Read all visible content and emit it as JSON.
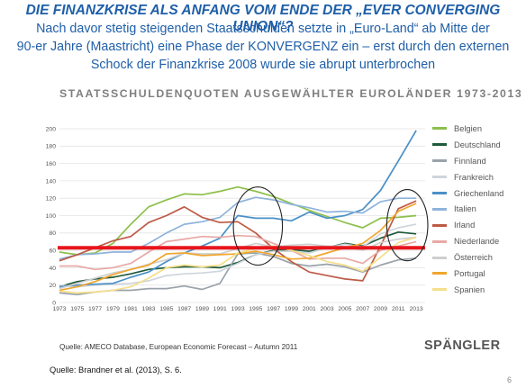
{
  "slide": {
    "title": "DIE FINANZKRISE ALS ANFANG VOM ENDE DER „EVER CONVERGING UNION“?",
    "subtitle_lines": [
      "Nach davor stetig steigenden Staatsschulden setzte in „Euro-Land“ ab Mitte der",
      "90-er Jahre (Maastricht) eine Phase der KONVERGENZ ein – erst durch den externen",
      "Schock der Finanzkrise 2008 wurde sie abrupt unterbrochen"
    ],
    "source_chart": "Quelle: AMECO Database, European Economic Forecast – Autumn 2011",
    "logo": "SPÄNGLER",
    "source_slide": "Quelle: Brandner et al. (2013), S. 6.",
    "page_number": "6"
  },
  "chart_data": {
    "type": "line",
    "title": "STAATSSCHULDENQUOTEN AUSGEWÄHLTER EUROLÄNDER 1973-2013",
    "xlabel": "",
    "ylabel": "",
    "xlim": [
      1973,
      2014
    ],
    "ylim": [
      0,
      200
    ],
    "yticks": [
      0,
      20,
      40,
      60,
      80,
      100,
      120,
      140,
      160,
      180,
      200
    ],
    "xticks": [
      1973,
      1975,
      1977,
      1979,
      1981,
      1983,
      1985,
      1987,
      1989,
      1991,
      1993,
      1995,
      1997,
      1999,
      2001,
      2003,
      2005,
      2007,
      2009,
      2011,
      2013
    ],
    "grid": true,
    "legend": "right",
    "reference_line": {
      "y": 63,
      "color": "#e8151c"
    },
    "annotations": [
      {
        "shape": "ellipse",
        "x_range": [
          1992.5,
          1998
        ],
        "y_range": [
          43,
          133
        ]
      },
      {
        "shape": "ellipse",
        "x_range": [
          2009.7,
          2014.3
        ],
        "y_range": [
          48,
          130
        ]
      }
    ],
    "x": [
      1973,
      1975,
      1977,
      1979,
      1981,
      1983,
      1985,
      1987,
      1989,
      1991,
      1993,
      1995,
      1997,
      1999,
      2001,
      2003,
      2005,
      2007,
      2009,
      2011,
      2013
    ],
    "series": [
      {
        "name": "Belgien",
        "color": "#8dc04b",
        "values": [
          58,
          55,
          57,
          68,
          90,
          110,
          118,
          125,
          124,
          128,
          133,
          128,
          122,
          114,
          106,
          99,
          92,
          86,
          97,
          98,
          100
        ]
      },
      {
        "name": "Deutschland",
        "color": "#1e5a3a",
        "values": [
          18,
          24,
          27,
          29,
          33,
          38,
          40,
          41,
          41,
          40,
          46,
          55,
          60,
          61,
          59,
          63,
          68,
          65,
          74,
          81,
          79
        ]
      },
      {
        "name": "Finnland",
        "color": "#9aa3ab",
        "values": [
          11,
          9,
          12,
          14,
          14,
          16,
          16,
          19,
          15,
          22,
          56,
          57,
          53,
          45,
          42,
          44,
          41,
          35,
          43,
          49,
          51
        ]
      },
      {
        "name": "Frankreich",
        "color": "#cfd5dc",
        "values": [
          20,
          18,
          20,
          21,
          22,
          25,
          31,
          33,
          34,
          36,
          45,
          55,
          59,
          59,
          57,
          63,
          67,
          64,
          79,
          86,
          90
        ]
      },
      {
        "name": "Griechenland",
        "color": "#4a90c7",
        "values": [
          18,
          20,
          21,
          22,
          29,
          35,
          47,
          57,
          65,
          74,
          100,
          97,
          97,
          94,
          104,
          97,
          100,
          107,
          129,
          163,
          198
        ]
      },
      {
        "name": "Italien",
        "color": "#8fb3dc",
        "values": [
          50,
          55,
          56,
          58,
          58,
          68,
          80,
          90,
          93,
          98,
          115,
          121,
          118,
          113,
          109,
          104,
          105,
          103,
          116,
          120,
          120
        ]
      },
      {
        "name": "Irland",
        "color": "#bd5a45",
        "values": [
          48,
          55,
          63,
          71,
          76,
          92,
          100,
          110,
          98,
          92,
          93,
          80,
          62,
          47,
          35,
          31,
          27,
          25,
          65,
          108,
          117
        ]
      },
      {
        "name": "Niederlande",
        "color": "#e8a9a6",
        "values": [
          42,
          42,
          38,
          40,
          45,
          58,
          70,
          73,
          76,
          75,
          77,
          76,
          68,
          60,
          50,
          51,
          51,
          45,
          60,
          65,
          70
        ]
      },
      {
        "name": "Österreich",
        "color": "#cfcfcf",
        "values": [
          16,
          22,
          28,
          34,
          38,
          44,
          49,
          57,
          56,
          56,
          62,
          68,
          64,
          66,
          67,
          65,
          64,
          60,
          69,
          73,
          75
        ]
      },
      {
        "name": "Portugal",
        "color": "#f1a62e",
        "values": [
          14,
          18,
          24,
          32,
          38,
          43,
          56,
          57,
          54,
          55,
          56,
          59,
          55,
          50,
          51,
          57,
          63,
          68,
          83,
          105,
          114
        ]
      },
      {
        "name": "Spanien",
        "color": "#f5df8a",
        "values": [
          13,
          11,
          12,
          14,
          18,
          28,
          40,
          43,
          41,
          43,
          57,
          62,
          65,
          60,
          54,
          47,
          43,
          36,
          52,
          69,
          75
        ]
      }
    ]
  }
}
